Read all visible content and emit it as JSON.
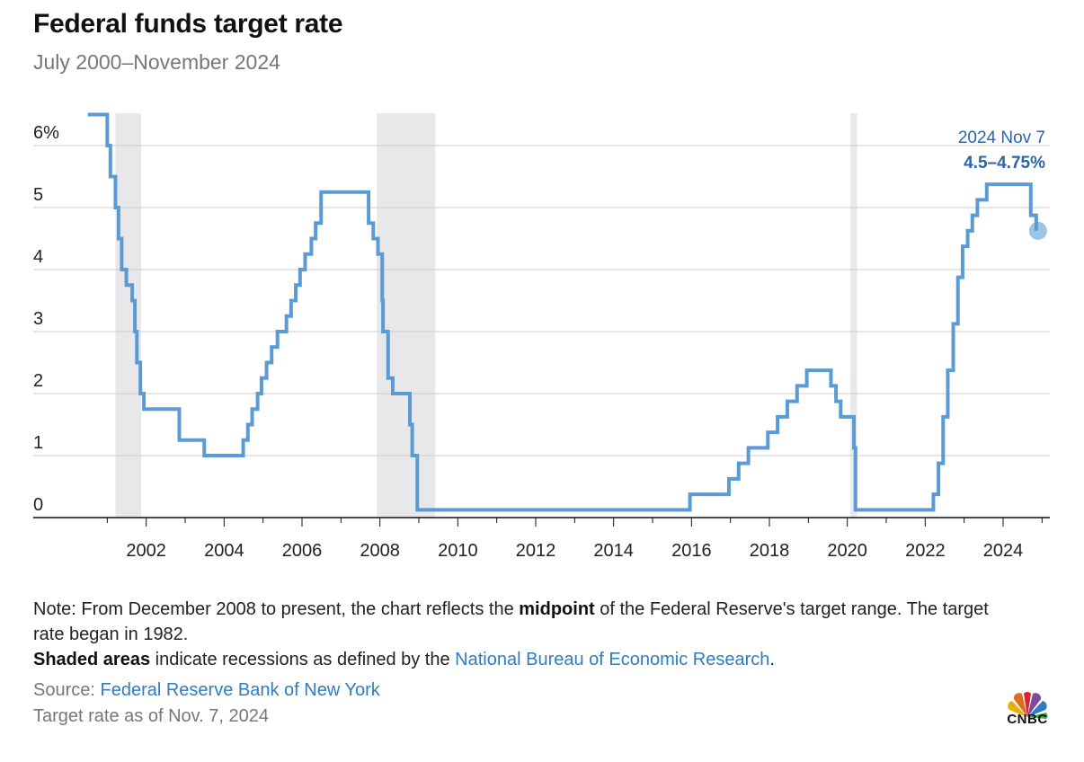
{
  "header": {
    "title": "Federal funds target rate",
    "subtitle": "July 2000–November 2024"
  },
  "annotation": {
    "date": "2024 Nov 7",
    "value": "4.5–4.75%"
  },
  "notes": {
    "note_prefix": "Note: From December 2008 to present, the chart reflects the ",
    "note_bold": "midpoint",
    "note_suffix": " of the Federal Reserve's target range. The target rate began in 1982.",
    "shaded_bold": "Shaded areas",
    "shaded_text": " indicate recessions as defined by the ",
    "shaded_link": "National Bureau of Economic Research",
    "shaded_end": ".",
    "source_label": "Source: ",
    "source_link": "Federal Reserve Bank of New York",
    "as_of": "Target rate as of Nov. 7, 2024"
  },
  "logo": {
    "text": "CNBC"
  },
  "colors": {
    "line": "#5b9bd5",
    "recession": "#e8e8ea",
    "grid": "#cccccc",
    "annotation": "#2e64a8",
    "link": "#2f7dc0"
  },
  "chart_data": {
    "type": "line",
    "title": "Federal funds target rate",
    "subtitle": "July 2000–November 2024",
    "xlabel": "",
    "ylabel": "",
    "xlim": [
      2000.5,
      2025.2
    ],
    "ylim": [
      0,
      6.5
    ],
    "y_ticks": [
      0,
      1,
      2,
      3,
      4,
      5,
      6
    ],
    "y_tick_labels": [
      "0",
      "1",
      "2",
      "3",
      "4",
      "5",
      "6%"
    ],
    "x_ticks": [
      2002,
      2004,
      2006,
      2008,
      2010,
      2012,
      2014,
      2016,
      2018,
      2020,
      2022,
      2024
    ],
    "x_tick_labels": [
      "2002",
      "2004",
      "2006",
      "2008",
      "2010",
      "2012",
      "2014",
      "2016",
      "2018",
      "2020",
      "2022",
      "2024"
    ],
    "grid": "horizontal",
    "recessions": [
      {
        "start": 2001.21,
        "end": 2001.87
      },
      {
        "start": 2007.92,
        "end": 2009.42
      },
      {
        "start": 2020.08,
        "end": 2020.25
      }
    ],
    "series": [
      {
        "name": "Federal funds target rate",
        "step": true,
        "points": [
          [
            2000.5,
            6.5
          ],
          [
            2001.0,
            6.0
          ],
          [
            2001.08,
            5.5
          ],
          [
            2001.21,
            5.0
          ],
          [
            2001.29,
            4.5
          ],
          [
            2001.37,
            4.0
          ],
          [
            2001.49,
            3.75
          ],
          [
            2001.64,
            3.5
          ],
          [
            2001.71,
            3.0
          ],
          [
            2001.76,
            2.5
          ],
          [
            2001.85,
            2.0
          ],
          [
            2001.94,
            1.75
          ],
          [
            2002.85,
            1.25
          ],
          [
            2003.49,
            1.0
          ],
          [
            2004.49,
            1.25
          ],
          [
            2004.61,
            1.5
          ],
          [
            2004.72,
            1.75
          ],
          [
            2004.86,
            2.0
          ],
          [
            2004.96,
            2.25
          ],
          [
            2005.09,
            2.5
          ],
          [
            2005.22,
            2.75
          ],
          [
            2005.37,
            3.0
          ],
          [
            2005.6,
            3.25
          ],
          [
            2005.72,
            3.5
          ],
          [
            2005.84,
            3.75
          ],
          [
            2005.95,
            4.0
          ],
          [
            2006.08,
            4.25
          ],
          [
            2006.24,
            4.5
          ],
          [
            2006.35,
            4.75
          ],
          [
            2006.49,
            5.25
          ],
          [
            2007.71,
            4.75
          ],
          [
            2007.83,
            4.5
          ],
          [
            2007.95,
            4.25
          ],
          [
            2008.06,
            3.5
          ],
          [
            2008.08,
            3.0
          ],
          [
            2008.21,
            2.25
          ],
          [
            2008.33,
            2.0
          ],
          [
            2008.77,
            1.5
          ],
          [
            2008.83,
            1.0
          ],
          [
            2008.96,
            0.125
          ],
          [
            2015.96,
            0.375
          ],
          [
            2016.96,
            0.625
          ],
          [
            2017.21,
            0.875
          ],
          [
            2017.46,
            1.125
          ],
          [
            2017.96,
            1.375
          ],
          [
            2018.21,
            1.625
          ],
          [
            2018.46,
            1.875
          ],
          [
            2018.71,
            2.125
          ],
          [
            2018.96,
            2.375
          ],
          [
            2019.58,
            2.125
          ],
          [
            2019.71,
            1.875
          ],
          [
            2019.83,
            1.625
          ],
          [
            2020.17,
            1.125
          ],
          [
            2020.21,
            0.125
          ],
          [
            2022.21,
            0.375
          ],
          [
            2022.34,
            0.875
          ],
          [
            2022.46,
            1.625
          ],
          [
            2022.58,
            2.375
          ],
          [
            2022.72,
            3.125
          ],
          [
            2022.84,
            3.875
          ],
          [
            2022.96,
            4.375
          ],
          [
            2023.09,
            4.625
          ],
          [
            2023.21,
            4.875
          ],
          [
            2023.34,
            5.125
          ],
          [
            2023.58,
            5.375
          ],
          [
            2024.71,
            4.875
          ],
          [
            2024.85,
            4.625
          ]
        ]
      }
    ],
    "end_marker": {
      "x": 2024.85,
      "y": 4.625
    }
  }
}
